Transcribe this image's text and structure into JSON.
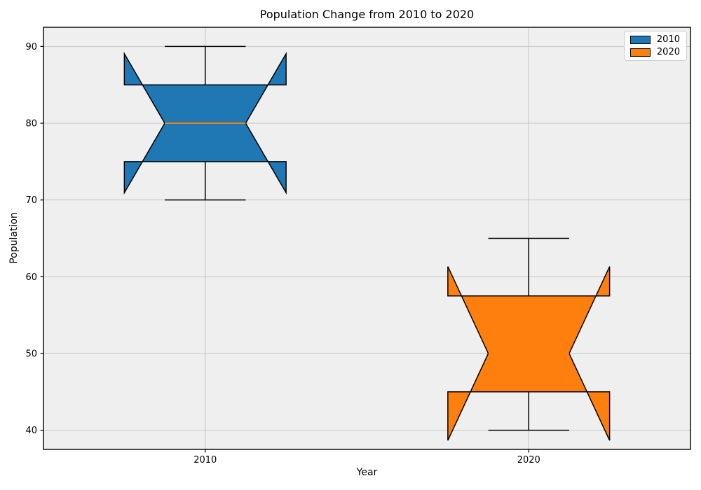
{
  "figure": {
    "background": "#ffffff"
  },
  "chart_data": {
    "type": "boxplot",
    "title": "Population Change from 2010 to 2020",
    "xlabel": "Year",
    "ylabel": "Population",
    "categories": [
      "2010",
      "2020"
    ],
    "positions": [
      1,
      2
    ],
    "notch": true,
    "box_width": 0.5,
    "grid": true,
    "xlim": [
      0.5,
      2.5
    ],
    "ylim": [
      37.5,
      92.5
    ],
    "yticks": [
      40,
      50,
      60,
      70,
      80,
      90
    ],
    "ytick_labels": [
      "40",
      "50",
      "60",
      "70",
      "80",
      "90"
    ],
    "series": [
      {
        "name": "2010",
        "position": 1,
        "color": "#1f77b4",
        "stats": {
          "whislo": 70,
          "q1": 75,
          "med": 80,
          "q3": 85,
          "whishi": 90,
          "notch_lo": 70.94,
          "notch_hi": 89.06
        }
      },
      {
        "name": "2020",
        "position": 2,
        "color": "#ff7f0e",
        "stats": {
          "whislo": 40,
          "q1": 45,
          "med": 50,
          "q3": 57.5,
          "whishi": 65,
          "notch_lo": 38.67,
          "notch_hi": 61.33
        }
      }
    ],
    "legend": {
      "position": "upper right",
      "entries": [
        {
          "label": "2010",
          "color": "#1f77b4"
        },
        {
          "label": "2020",
          "color": "#ff7f0e"
        }
      ]
    },
    "colors": {
      "axes_bg": "#efefef",
      "grid": "#c4c4c4",
      "edge": "#000000",
      "median": "#ff7f0e",
      "tick_text": "#000000"
    }
  }
}
